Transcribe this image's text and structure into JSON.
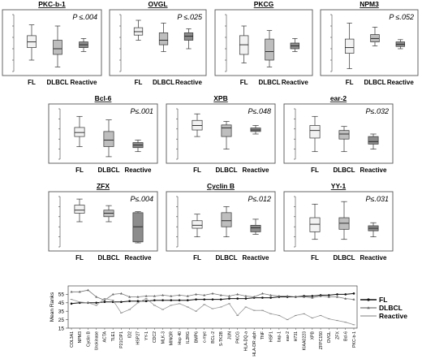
{
  "colors": {
    "FL": "#f2f2f2",
    "DLBCL": "#bebebe",
    "Reactive": "#8c8c8c",
    "frame": "#555555"
  },
  "chart_data": [
    {
      "type": "box",
      "title": "PKC-b-1",
      "p_value": "P ≤.004",
      "categories": [
        "FL",
        "DLBCL",
        "Reactive"
      ],
      "ylim": [
        0,
        100
      ],
      "boxes": [
        {
          "min": 20,
          "q1": 42,
          "median": 52,
          "q3": 63,
          "max": 82
        },
        {
          "min": 8,
          "q1": 30,
          "median": 40,
          "q3": 55,
          "max": 80
        },
        {
          "min": 35,
          "q1": 42,
          "median": 47,
          "q3": 52,
          "max": 58
        }
      ]
    },
    {
      "type": "box",
      "title": "OVGL",
      "p_value": "P ≤.025",
      "categories": [
        "FL",
        "DLBCL",
        "Reactive"
      ],
      "ylim": [
        0,
        100
      ],
      "boxes": [
        {
          "min": 55,
          "q1": 64,
          "median": 70,
          "q3": 77,
          "max": 90
        },
        {
          "min": 35,
          "q1": 47,
          "median": 55,
          "q3": 68,
          "max": 85
        },
        {
          "min": 40,
          "q1": 55,
          "median": 62,
          "q3": 68,
          "max": 75
        }
      ]
    },
    {
      "type": "box",
      "title": "PKCG",
      "p_value": "",
      "categories": [
        "FL",
        "DLBCL",
        "Reactive"
      ],
      "ylim": [
        0,
        100
      ],
      "boxes": [
        {
          "min": 15,
          "q1": 30,
          "median": 47,
          "q3": 63,
          "max": 80
        },
        {
          "min": 8,
          "q1": 20,
          "median": 35,
          "q3": 57,
          "max": 72
        },
        {
          "min": 35,
          "q1": 40,
          "median": 45,
          "q3": 50,
          "max": 58
        }
      ]
    },
    {
      "type": "box",
      "title": "NPM3",
      "p_value": "P ≤.052",
      "categories": [
        "FL",
        "DLBCL",
        "Reactive"
      ],
      "ylim": [
        0,
        100
      ],
      "boxes": [
        {
          "min": 5,
          "q1": 32,
          "median": 42,
          "q3": 57,
          "max": 85
        },
        {
          "min": 45,
          "q1": 52,
          "median": 58,
          "q3": 65,
          "max": 78
        },
        {
          "min": 40,
          "q1": 44,
          "median": 48,
          "q3": 52,
          "max": 56
        }
      ]
    },
    {
      "type": "box",
      "title": "Bcl-6",
      "p_value": "P≤.001",
      "categories": [
        "FL",
        "DLBCL",
        "Reactive"
      ],
      "ylim": [
        0,
        100
      ],
      "boxes": [
        {
          "min": 25,
          "q1": 45,
          "median": 53,
          "q3": 63,
          "max": 85
        },
        {
          "min": 5,
          "q1": 25,
          "median": 38,
          "q3": 55,
          "max": 78
        },
        {
          "min": 15,
          "q1": 23,
          "median": 28,
          "q3": 33,
          "max": 38
        }
      ]
    },
    {
      "type": "box",
      "title": "XPB",
      "p_value": "P≤.048",
      "categories": [
        "FL",
        "DLBCL",
        "Reactive"
      ],
      "ylim": [
        0,
        100
      ],
      "boxes": [
        {
          "min": 45,
          "q1": 58,
          "median": 67,
          "q3": 77,
          "max": 90
        },
        {
          "min": 20,
          "q1": 45,
          "median": 62,
          "q3": 68,
          "max": 75
        },
        {
          "min": 50,
          "q1": 55,
          "median": 58,
          "q3": 62,
          "max": 67
        }
      ]
    },
    {
      "type": "box",
      "title": "ear-2",
      "p_value": "P≤.032",
      "categories": [
        "FL",
        "DLBCL",
        "Reactive"
      ],
      "ylim": [
        0,
        100
      ],
      "boxes": [
        {
          "min": 15,
          "q1": 42,
          "median": 57,
          "q3": 67,
          "max": 85
        },
        {
          "min": 15,
          "q1": 40,
          "median": 50,
          "q3": 57,
          "max": 65
        },
        {
          "min": 20,
          "q1": 30,
          "median": 35,
          "q3": 45,
          "max": 50
        }
      ]
    },
    {
      "type": "box",
      "title": "ZFX",
      "p_value": "P≤.004",
      "categories": [
        "FL",
        "DLBCL",
        "Reactive"
      ],
      "ylim": [
        0,
        100
      ],
      "boxes": [
        {
          "min": 50,
          "q1": 67,
          "median": 73,
          "q3": 83,
          "max": 95
        },
        {
          "min": 50,
          "q1": 60,
          "median": 67,
          "q3": 73,
          "max": 82
        },
        {
          "min": 8,
          "q1": 10,
          "median": 40,
          "q3": 68,
          "max": 70
        }
      ]
    },
    {
      "type": "box",
      "title": "Cyclin B",
      "p_value": "P≤.012",
      "categories": [
        "FL",
        "DLBCL",
        "Reactive"
      ],
      "ylim": [
        0,
        100
      ],
      "boxes": [
        {
          "min": 20,
          "q1": 37,
          "median": 43,
          "q3": 52,
          "max": 65
        },
        {
          "min": 20,
          "q1": 40,
          "median": 52,
          "q3": 68,
          "max": 80
        },
        {
          "min": 25,
          "q1": 30,
          "median": 38,
          "q3": 43,
          "max": 55
        }
      ]
    },
    {
      "type": "box",
      "title": "YY-1",
      "p_value": "P≤.031",
      "categories": [
        "FL",
        "DLBCL",
        "Reactive"
      ],
      "ylim": [
        0,
        100
      ],
      "boxes": [
        {
          "min": 15,
          "q1": 30,
          "median": 45,
          "q3": 58,
          "max": 85
        },
        {
          "min": 15,
          "q1": 35,
          "median": 47,
          "q3": 58,
          "max": 90
        },
        {
          "min": 20,
          "q1": 32,
          "median": 37,
          "q3": 42,
          "max": 48
        }
      ]
    },
    {
      "type": "line",
      "title": "",
      "ylabel": "Mean Ranks",
      "ylim": [
        15,
        65
      ],
      "yticks": [
        15,
        25,
        35,
        45,
        55
      ],
      "legend": "right",
      "categories": [
        "COL3A1",
        "NPM3",
        "Cyclin B",
        "Urokinase",
        "ACTA",
        "TLE1",
        "P21CIP1",
        "ID2",
        "HSP27",
        "YY-1",
        "CDC2",
        "MLK-3",
        "MINOR",
        "Hsp 40",
        "IL2RG",
        "BMP6",
        "c-myc",
        "BCL-2",
        "S-TK2B",
        "JUN",
        "PKCG",
        "HLA-DQ-a",
        "HLA-DR alph",
        "TNF",
        "HSF1",
        "bap-1",
        "ear-2",
        "H731",
        "KIAA0223",
        "XPB",
        "ZFPC150",
        "OVGL",
        "ZFX",
        "Bcl-6",
        "PKC-b-1"
      ],
      "series": [
        {
          "name": "FL",
          "marker": "circle",
          "values": [
            44,
            45,
            45,
            45,
            46,
            46,
            46,
            47,
            47,
            47,
            48,
            48,
            48,
            48,
            48,
            49,
            49,
            49,
            49,
            50,
            50,
            50,
            51,
            51,
            51,
            52,
            52,
            52,
            53,
            53,
            54,
            54,
            55,
            55,
            56
          ]
        },
        {
          "name": "DLBCL",
          "marker": "triangle",
          "values": [
            58,
            58,
            60,
            52,
            48,
            55,
            56,
            52,
            52,
            53,
            53,
            54,
            53,
            54,
            53,
            55,
            54,
            56,
            54,
            53,
            55,
            53,
            52,
            56,
            54,
            53,
            53,
            52,
            52,
            51,
            53,
            52,
            52,
            50,
            49
          ]
        },
        {
          "name": "Reactive",
          "marker": "dash",
          "values": [
            49,
            46,
            45,
            42,
            50,
            48,
            33,
            37,
            45,
            50,
            42,
            37,
            42,
            44,
            40,
            35,
            43,
            38,
            40,
            44,
            30,
            40,
            36,
            36,
            32,
            30,
            25,
            30,
            32,
            27,
            30,
            26,
            24,
            22,
            19
          ]
        }
      ]
    }
  ]
}
